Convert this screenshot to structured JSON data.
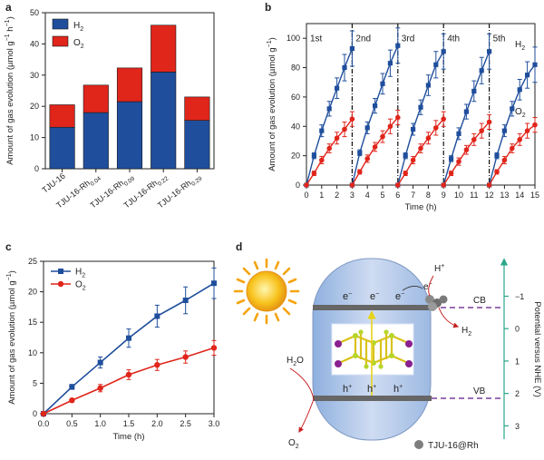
{
  "panels": {
    "a": "a",
    "b": "b",
    "c": "c",
    "d": "d"
  },
  "colors": {
    "h2": "#1f4e9c",
    "o2": "#e0251b",
    "teal": "#2aa58a",
    "purple": "#6b2d8f",
    "dash": "#7a3d9a"
  },
  "chart_data": [
    {
      "id": "a",
      "type": "bar",
      "stacked": true,
      "categories": [
        "TJU-16",
        "TJU-16-Rh",
        "TJU-16-Rh",
        "TJU-16-Rh",
        "TJU-16-Rh"
      ],
      "category_subscripts": [
        "",
        "0.04",
        "0.09",
        "0.22",
        "0.29"
      ],
      "series": [
        {
          "name": "H",
          "subscript": "2",
          "values": [
            13.3,
            18.0,
            21.5,
            31.0,
            15.5
          ]
        },
        {
          "name": "O",
          "subscript": "2",
          "values": [
            7.2,
            8.8,
            10.8,
            15.0,
            7.5
          ]
        }
      ],
      "ylabel_parts": [
        "Amount of gas evolution (µmol g",
        "−1",
        " h",
        "−1",
        ")"
      ],
      "ylim": [
        0,
        50
      ],
      "yticks": [
        0,
        10,
        20,
        30,
        40,
        50
      ],
      "legend": "top-left"
    },
    {
      "id": "b",
      "type": "line",
      "xlabel": "Time (h)",
      "ylabel_parts": [
        "Amount of gas evolution (µmol g",
        "−1",
        ")"
      ],
      "xlim": [
        0,
        15
      ],
      "ylim": [
        0,
        110
      ],
      "xticks": [
        0,
        1,
        2,
        3,
        4,
        5,
        6,
        7,
        8,
        9,
        10,
        11,
        12,
        13,
        14,
        15
      ],
      "yticks": [
        0,
        20,
        40,
        60,
        80,
        100
      ],
      "cycle_labels": [
        "1st",
        "2nd",
        "3rd",
        "4th",
        "5th"
      ],
      "cycle_boundaries": [
        3,
        6,
        9,
        12
      ],
      "cycle_x": [
        0,
        0.5,
        1,
        1.5,
        2,
        2.5,
        3
      ],
      "series": [
        {
          "name": "H",
          "subscript": "2",
          "cycles": [
            [
              0,
              20,
              37,
              52,
              66,
              80,
              93
            ],
            [
              0,
              22,
              39,
              54,
              69,
              83,
              95
            ],
            [
              0,
              20,
              38,
              53,
              68,
              82,
              91
            ],
            [
              0,
              18,
              35,
              50,
              64,
              78,
              91
            ],
            [
              0,
              20,
              37,
              52,
              65,
              75,
              82
            ]
          ],
          "errors": [
            [
              0,
              2,
              4,
              5,
              7,
              9,
              12
            ],
            [
              0,
              2,
              4,
              5,
              7,
              9,
              12
            ],
            [
              0,
              2,
              4,
              5,
              7,
              9,
              12
            ],
            [
              0,
              2,
              4,
              5,
              7,
              9,
              12
            ],
            [
              0,
              2,
              4,
              5,
              7,
              9,
              12
            ]
          ]
        },
        {
          "name": "O",
          "subscript": "2",
          "cycles": [
            [
              0,
              8,
              17,
              25,
              32,
              38,
              45
            ],
            [
              0,
              9,
              18,
              26,
              33,
              40,
              46
            ],
            [
              0,
              8,
              17,
              25,
              32,
              39,
              45
            ],
            [
              0,
              8,
              16,
              24,
              31,
              37,
              43
            ],
            [
              0,
              9,
              17,
              25,
              31,
              37,
              41
            ]
          ],
          "errors": [
            [
              0,
              1.5,
              2.5,
              3,
              4,
              5,
              5
            ],
            [
              0,
              1.5,
              2.5,
              3,
              4,
              5,
              5
            ],
            [
              0,
              1.5,
              2.5,
              3,
              4,
              5,
              5
            ],
            [
              0,
              1.5,
              2.5,
              3,
              4,
              5,
              5
            ],
            [
              0,
              1.5,
              2.5,
              3,
              4,
              5,
              5
            ]
          ]
        }
      ],
      "legend": "right"
    },
    {
      "id": "c",
      "type": "line",
      "xlabel": "Time (h)",
      "ylabel_parts": [
        "Amount of gas evolution (µmol g",
        "−1",
        ")"
      ],
      "xlim": [
        0,
        3
      ],
      "ylim": [
        0,
        25
      ],
      "xticks": [
        0.0,
        0.5,
        1.0,
        1.5,
        2.0,
        2.5,
        3.0
      ],
      "yticks": [
        0,
        5,
        10,
        15,
        20,
        25
      ],
      "x": [
        0,
        0.5,
        1.0,
        1.5,
        2.0,
        2.5,
        3.0
      ],
      "series": [
        {
          "name": "H",
          "subscript": "2",
          "marker": "square",
          "values": [
            0,
            4.4,
            8.4,
            12.4,
            16.0,
            18.6,
            21.4
          ],
          "errors": [
            0,
            0.4,
            0.9,
            1.5,
            1.8,
            2.2,
            2.5
          ]
        },
        {
          "name": "O",
          "subscript": "2",
          "marker": "circle",
          "values": [
            0,
            2.2,
            4.2,
            6.4,
            8.0,
            9.3,
            10.8
          ],
          "errors": [
            0,
            0.3,
            0.6,
            0.8,
            0.9,
            1.0,
            1.2
          ]
        }
      ],
      "legend": "top-left"
    },
    {
      "id": "d",
      "type": "diagram",
      "labels": {
        "electron": "e",
        "electron_sup": "−",
        "hole": "h",
        "hole_sup": "+",
        "h_plus": "H",
        "h_plus_sup": "+",
        "h2": "H",
        "h2_sub": "2",
        "h2o": "H",
        "h2o_sub": "2",
        "h2o_tail": "O",
        "o2": "O",
        "o2_sub": "2",
        "cb": "CB",
        "vb": "VB",
        "catalyst": "TJU-16@Rh",
        "potential_label": "Potential versus NHE (V)"
      },
      "potential_ticks": [
        "−1",
        "0",
        "1",
        "2",
        "3"
      ]
    }
  ]
}
